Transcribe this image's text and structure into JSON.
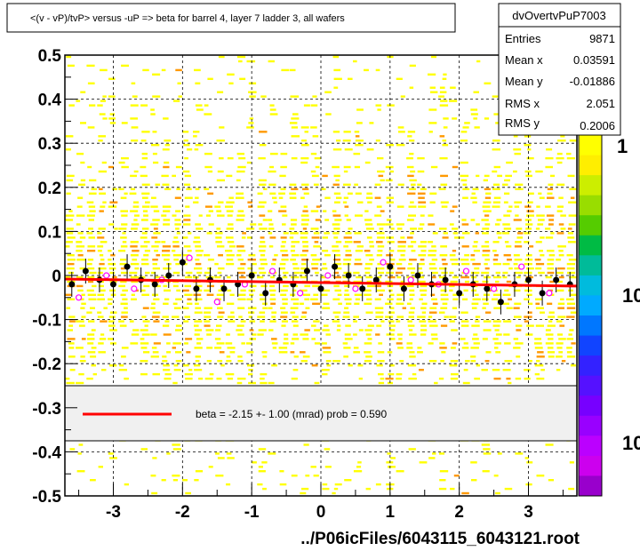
{
  "title": "<(v - vP)/tvP> versus  -uP => beta for barrel 4, layer 7 ladder 3, all wafers",
  "x_axis_label": "../P06icFiles/6043115_6043121.root",
  "stats": {
    "name": "dvOvertvPuP7003",
    "rows": [
      {
        "label": "Entries",
        "value": "9871"
      },
      {
        "label": "Mean x",
        "value": "0.03591"
      },
      {
        "label": "Mean y",
        "value": "-0.01886"
      },
      {
        "label": "RMS x",
        "value": "2.051"
      },
      {
        "label": "RMS y",
        "value": "0.2006"
      }
    ]
  },
  "legend": {
    "text": "beta =   -2.15 +-   1.00 (mrad) prob = 0.590",
    "line_color": "#ff0000"
  },
  "palette": {
    "labels": [
      "1",
      "10",
      "10"
    ]
  },
  "colors": {
    "fit_line": "#ff0000",
    "profile_points": "#000000",
    "open_markers": "#ff00ff",
    "band_yellow": "#ffff00",
    "band_orange": "#ff9900"
  },
  "chart_data": {
    "type": "heatmap",
    "overlay": "profile with linear fit",
    "xlim": [
      -3.7,
      3.7
    ],
    "ylim": [
      -0.5,
      0.5
    ],
    "x_ticks": [
      "-3",
      "-2",
      "-1",
      "0",
      "1",
      "2",
      "3"
    ],
    "x_tick_values": [
      -3,
      -2,
      -1,
      0,
      1,
      2,
      3
    ],
    "y_ticks": [
      "-0.5",
      "-0.4",
      "-0.3",
      "-0.2",
      "-0.1",
      "0",
      "0.1",
      "0.2",
      "0.3",
      "0.4",
      "0.5"
    ],
    "y_tick_values": [
      -0.5,
      -0.4,
      -0.3,
      -0.2,
      -0.1,
      0,
      0.1,
      0.2,
      0.3,
      0.4,
      0.5
    ],
    "grid": true,
    "fit": {
      "x": [
        -3.7,
        3.7
      ],
      "y": [
        -0.008,
        -0.024
      ]
    },
    "profile": {
      "x": [
        -3.6,
        -3.4,
        -3.2,
        -3.0,
        -2.8,
        -2.6,
        -2.4,
        -2.2,
        -2.0,
        -1.8,
        -1.6,
        -1.4,
        -1.2,
        -1.0,
        -0.8,
        -0.6,
        -0.4,
        -0.2,
        0.0,
        0.2,
        0.4,
        0.6,
        0.8,
        1.0,
        1.2,
        1.4,
        1.6,
        1.8,
        2.0,
        2.2,
        2.4,
        2.6,
        2.8,
        3.0,
        3.2,
        3.4,
        3.6
      ],
      "y": [
        -0.02,
        0.01,
        -0.01,
        -0.02,
        0.02,
        -0.01,
        -0.02,
        0.0,
        0.03,
        -0.03,
        -0.01,
        -0.03,
        -0.02,
        0.0,
        -0.04,
        -0.01,
        -0.02,
        0.01,
        -0.03,
        0.02,
        0.0,
        -0.03,
        -0.01,
        0.02,
        -0.03,
        0.0,
        -0.02,
        -0.01,
        -0.04,
        -0.02,
        -0.03,
        -0.06,
        -0.02,
        -0.01,
        -0.04,
        -0.01,
        -0.02
      ]
    },
    "open_points": {
      "x": [
        -3.5,
        -3.1,
        -2.7,
        -2.3,
        -1.9,
        -1.5,
        -1.1,
        -0.7,
        -0.3,
        0.1,
        0.5,
        0.9,
        1.3,
        1.7,
        2.1,
        2.5,
        2.9,
        3.3
      ],
      "y": [
        -0.05,
        0.0,
        -0.03,
        -0.01,
        0.04,
        -0.06,
        -0.02,
        0.01,
        -0.04,
        0.0,
        -0.03,
        0.03,
        -0.01,
        -0.02,
        0.01,
        -0.03,
        0.02,
        -0.04
      ]
    }
  }
}
